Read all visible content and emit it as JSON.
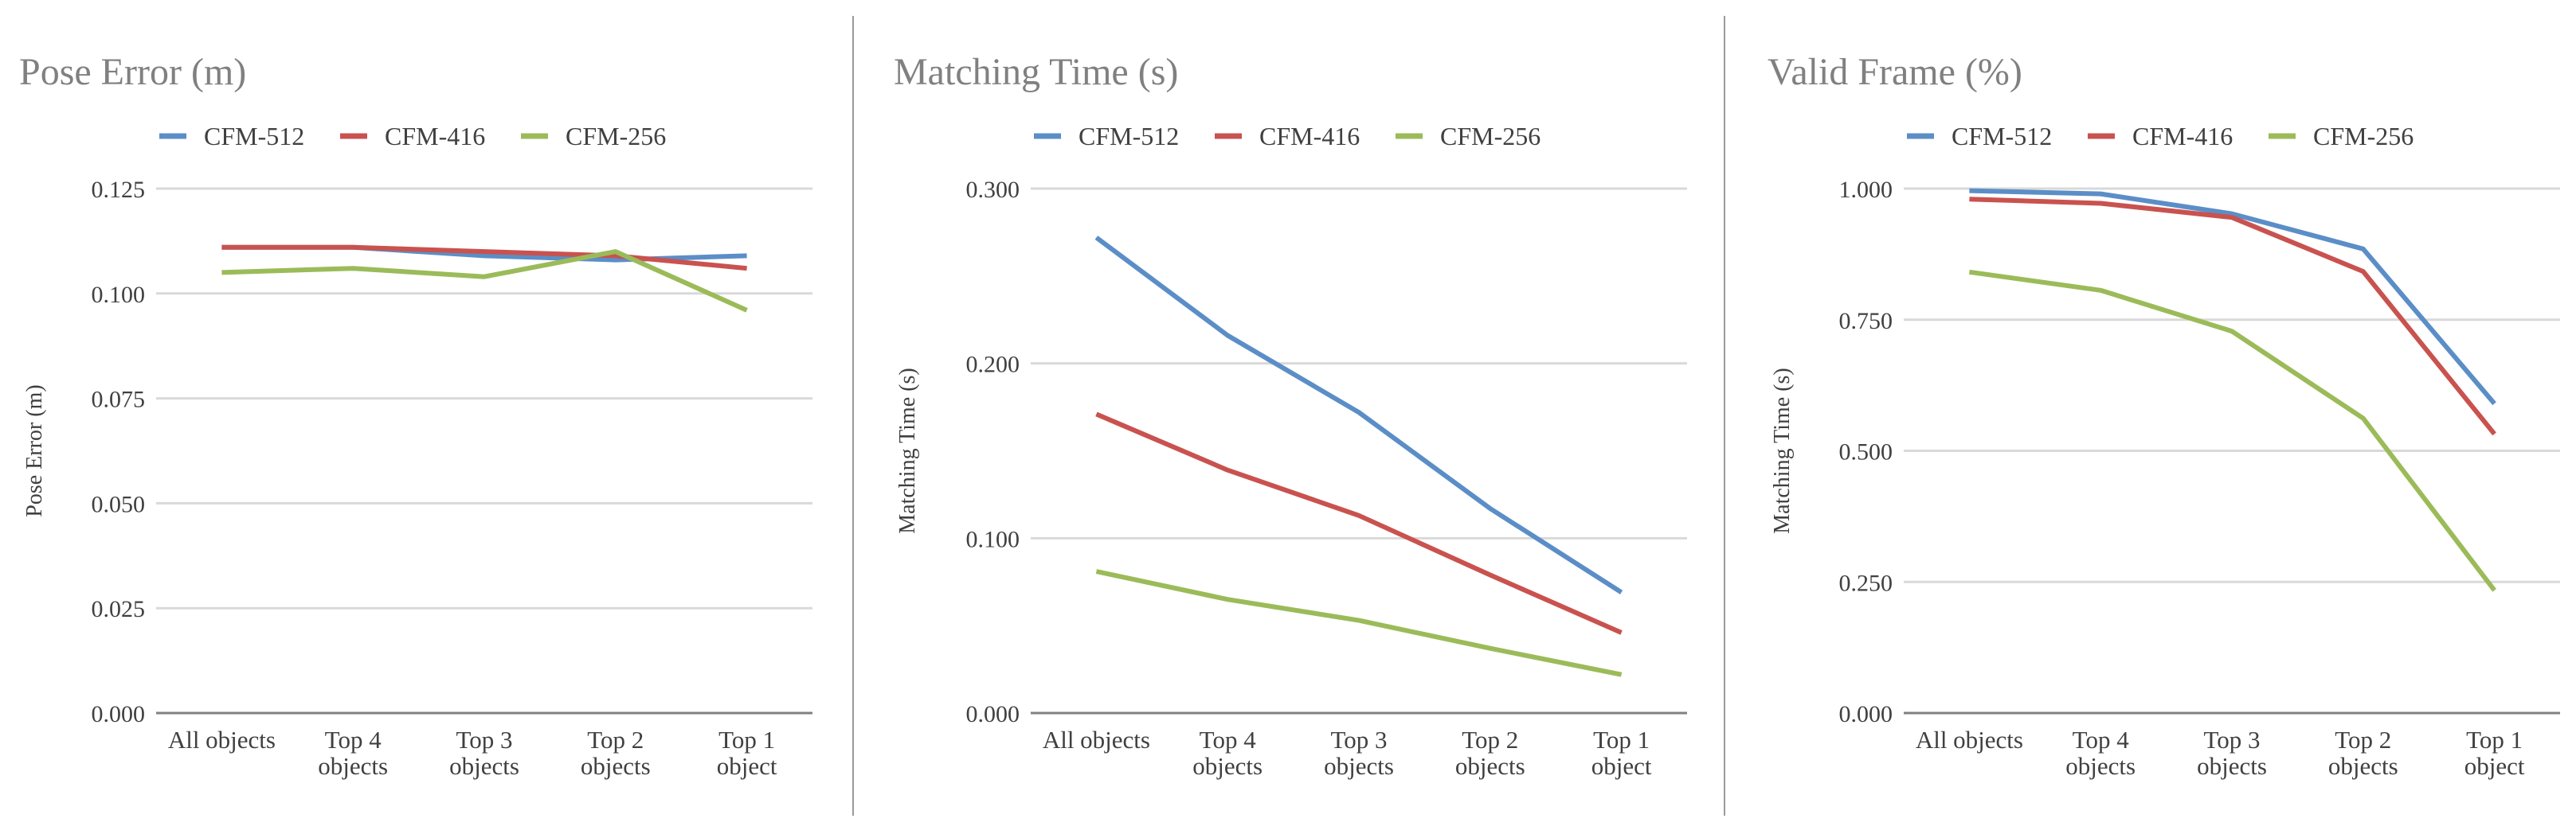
{
  "colors": {
    "CFM-512": "#5b8ec7",
    "CFM-416": "#c9524f",
    "CFM-256": "#9bbb59",
    "grid": "#d9d9d9",
    "axis": "#808080",
    "title": "#808080",
    "text": "#404040",
    "divider": "#9a9a9a"
  },
  "chart_data": [
    {
      "type": "line",
      "title": "Pose Error (m)",
      "xlabel": "",
      "ylabel": "Pose Error (m)",
      "categories": [
        [
          "All objects"
        ],
        [
          "Top 4",
          "objects"
        ],
        [
          "Top 3",
          "objects"
        ],
        [
          "Top 2",
          "objects"
        ],
        [
          "Top 1",
          "object"
        ]
      ],
      "ylim": [
        0,
        0.125
      ],
      "yticks": [
        0,
        0.025,
        0.05,
        0.075,
        0.1,
        0.125
      ],
      "ytick_labels": [
        "0.000",
        "0.025",
        "0.050",
        "0.075",
        "0.100",
        "0.125"
      ],
      "legend_position": "top",
      "series": [
        {
          "name": "CFM-512",
          "values": [
            0.111,
            0.111,
            0.109,
            0.108,
            0.109
          ]
        },
        {
          "name": "CFM-416",
          "values": [
            0.111,
            0.111,
            0.11,
            0.109,
            0.106
          ]
        },
        {
          "name": "CFM-256",
          "values": [
            0.105,
            0.106,
            0.104,
            0.11,
            0.096
          ]
        }
      ]
    },
    {
      "type": "line",
      "title": "Matching Time (s)",
      "xlabel": "",
      "ylabel": "Matching Time (s)",
      "categories": [
        [
          "All objects"
        ],
        [
          "Top 4",
          "objects"
        ],
        [
          "Top 3",
          "objects"
        ],
        [
          "Top 2",
          "objects"
        ],
        [
          "Top 1",
          "object"
        ]
      ],
      "ylim": [
        0,
        0.3
      ],
      "yticks": [
        0,
        0.1,
        0.2,
        0.3
      ],
      "ytick_labels": [
        "0.000",
        "0.100",
        "0.200",
        "0.300"
      ],
      "legend_position": "top",
      "series": [
        {
          "name": "CFM-512",
          "values": [
            0.272,
            0.216,
            0.172,
            0.117,
            0.069
          ]
        },
        {
          "name": "CFM-416",
          "values": [
            0.171,
            0.139,
            0.113,
            0.079,
            0.046
          ]
        },
        {
          "name": "CFM-256",
          "values": [
            0.081,
            0.065,
            0.053,
            0.037,
            0.022
          ]
        }
      ]
    },
    {
      "type": "line",
      "title": "Valid Frame (%)",
      "xlabel": "",
      "ylabel": "Matching Time (s)",
      "categories": [
        [
          "All objects"
        ],
        [
          "Top 4",
          "objects"
        ],
        [
          "Top 3",
          "objects"
        ],
        [
          "Top 2",
          "objects"
        ],
        [
          "Top 1",
          "object"
        ]
      ],
      "ylim": [
        0,
        1.0
      ],
      "yticks": [
        0,
        0.25,
        0.5,
        0.75,
        1.0
      ],
      "ytick_labels": [
        "0.000",
        "0.250",
        "0.500",
        "0.750",
        "1.000"
      ],
      "legend_position": "top",
      "series": [
        {
          "name": "CFM-512",
          "values": [
            0.996,
            0.99,
            0.952,
            0.885,
            0.59
          ]
        },
        {
          "name": "CFM-416",
          "values": [
            0.98,
            0.972,
            0.945,
            0.842,
            0.532
          ]
        },
        {
          "name": "CFM-256",
          "values": [
            0.841,
            0.806,
            0.728,
            0.562,
            0.234
          ]
        }
      ]
    }
  ]
}
